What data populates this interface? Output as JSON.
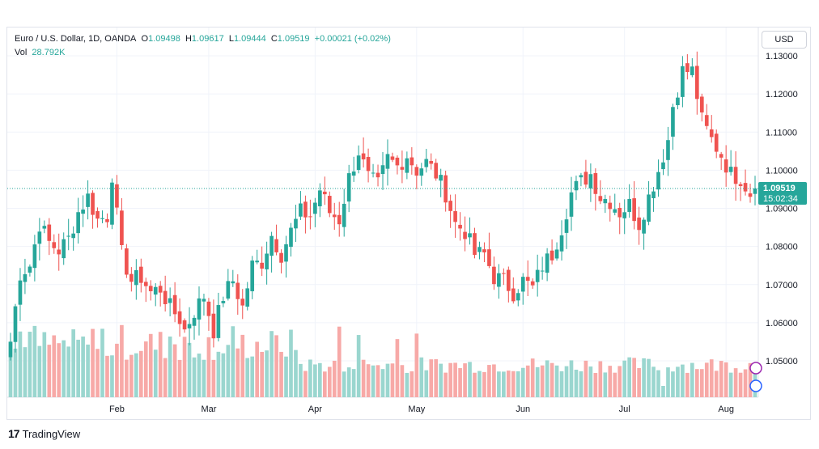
{
  "legend": {
    "symbol": "Euro / U.S. Dollar, 1D, OANDA",
    "open_label": "O",
    "open": "1.09498",
    "high_label": "H",
    "high": "1.09617",
    "low_label": "L",
    "low": "1.09444",
    "close_label": "C",
    "close": "1.09519",
    "change": "+0.00021 (+0.02%)",
    "vol_label": "Vol",
    "vol": "28.792K"
  },
  "currency_button": "USD",
  "last_price": {
    "price": "1.09519",
    "countdown": "15:02:34"
  },
  "brand": {
    "name": "TradingView"
  },
  "colors": {
    "up": "#26a69a",
    "down": "#ef5350",
    "up_vol": "#9ad6cf",
    "down_vol": "#f7a9a7",
    "grid": "#f0f3fa",
    "axis_text": "#131722"
  },
  "chart_data": {
    "type": "candlestick",
    "ylim": [
      1.0405,
      1.131
    ],
    "y_ticks": [
      "1.13000",
      "1.12000",
      "1.11000",
      "1.10000",
      "1.09000",
      "1.08000",
      "1.07000",
      "1.06000",
      "1.05000"
    ],
    "y_tick_values": [
      1.13,
      1.12,
      1.11,
      1.1,
      1.09,
      1.08,
      1.07,
      1.06,
      1.05
    ],
    "x_ticks": [
      "Feb",
      "Mar",
      "Apr",
      "May",
      "Jun",
      "Jul",
      "Aug"
    ],
    "x_tick_index": [
      22,
      41,
      63,
      84,
      106,
      127,
      148
    ],
    "grid": true,
    "current_price": 1.09519,
    "anchors": [
      [
        0,
        1.055
      ],
      [
        2,
        1.073
      ],
      [
        4,
        1.075
      ],
      [
        6,
        1.086
      ],
      [
        8,
        1.081
      ],
      [
        10,
        1.079
      ],
      [
        12,
        1.082
      ],
      [
        14,
        1.089
      ],
      [
        16,
        1.093
      ],
      [
        18,
        1.087
      ],
      [
        20,
        1.088
      ],
      [
        21,
        1.099
      ],
      [
        22,
        1.088
      ],
      [
        23,
        1.078
      ],
      [
        25,
        1.071
      ],
      [
        27,
        1.072
      ],
      [
        29,
        1.068
      ],
      [
        31,
        1.069
      ],
      [
        33,
        1.064
      ],
      [
        35,
        1.061
      ],
      [
        36,
        1.058
      ],
      [
        38,
        1.063
      ],
      [
        40,
        1.067
      ],
      [
        42,
        1.058
      ],
      [
        44,
        1.067
      ],
      [
        46,
        1.071
      ],
      [
        48,
        1.064
      ],
      [
        50,
        1.075
      ],
      [
        52,
        1.076
      ],
      [
        54,
        1.083
      ],
      [
        56,
        1.078
      ],
      [
        58,
        1.084
      ],
      [
        60,
        1.089
      ],
      [
        62,
        1.088
      ],
      [
        64,
        1.095
      ],
      [
        66,
        1.089
      ],
      [
        68,
        1.087
      ],
      [
        70,
        1.098
      ],
      [
        72,
        1.105
      ],
      [
        74,
        1.098
      ],
      [
        76,
        1.096
      ],
      [
        78,
        1.103
      ],
      [
        80,
        1.101
      ],
      [
        82,
        1.104
      ],
      [
        84,
        1.1
      ],
      [
        86,
        1.102
      ],
      [
        88,
        1.099
      ],
      [
        90,
        1.094
      ],
      [
        92,
        1.086
      ],
      [
        94,
        1.084
      ],
      [
        96,
        1.078
      ],
      [
        98,
        1.078
      ],
      [
        100,
        1.072
      ],
      [
        102,
        1.071
      ],
      [
        104,
        1.068
      ],
      [
        106,
        1.071
      ],
      [
        108,
        1.069
      ],
      [
        110,
        1.075
      ],
      [
        112,
        1.078
      ],
      [
        114,
        1.085
      ],
      [
        116,
        1.094
      ],
      [
        118,
        1.097
      ],
      [
        120,
        1.099
      ],
      [
        122,
        1.093
      ],
      [
        124,
        1.092
      ],
      [
        126,
        1.089
      ],
      [
        128,
        1.091
      ],
      [
        130,
        1.086
      ],
      [
        132,
        1.093
      ],
      [
        134,
        1.1
      ],
      [
        136,
        1.108
      ],
      [
        137,
        1.117
      ],
      [
        139,
        1.126
      ],
      [
        141,
        1.126
      ],
      [
        143,
        1.113
      ],
      [
        145,
        1.108
      ],
      [
        147,
        1.104
      ],
      [
        149,
        1.099
      ],
      [
        151,
        1.098
      ],
      [
        153,
        1.094
      ],
      [
        154,
        1.095
      ]
    ],
    "volume_hi": [
      5,
      17,
      23,
      33,
      46,
      68,
      72,
      80,
      84
    ],
    "volume_range": [
      0.45,
      1.0
    ]
  }
}
